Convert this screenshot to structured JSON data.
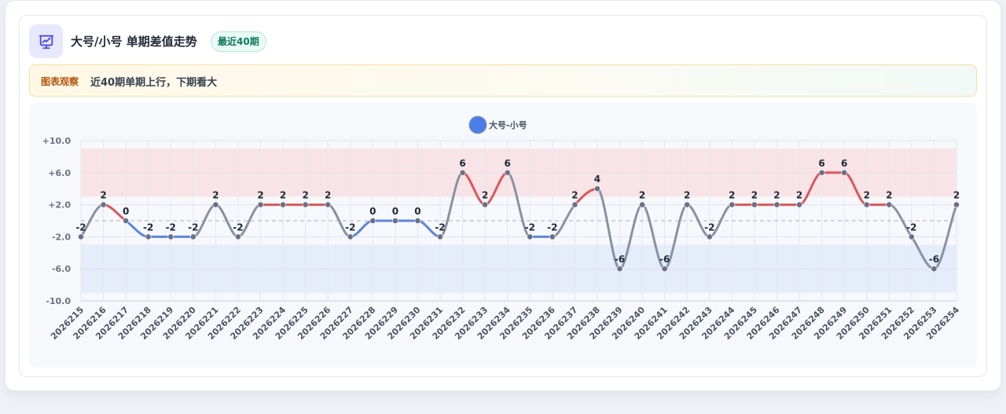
{
  "header": {
    "title": "大号/小号 单期差值走势",
    "badge": "最近40期",
    "icon": "presentation-chart-icon",
    "accent": "#4f46e5"
  },
  "note": {
    "tag": "图表观察",
    "text": "近40期单期上行，下期看大"
  },
  "chart_data": {
    "type": "line",
    "title": "",
    "xlabel": "",
    "ylabel": "",
    "series": [
      {
        "name": "大号-小号",
        "values": [
          -2,
          2,
          0,
          -2,
          -2,
          -2,
          2,
          -2,
          2,
          2,
          2,
          2,
          -2,
          0,
          0,
          0,
          -2,
          6,
          2,
          6,
          -2,
          -2,
          2,
          4,
          -6,
          2,
          -6,
          2,
          -2,
          2,
          2,
          2,
          2,
          6,
          6,
          2,
          2,
          -2,
          -6,
          2
        ]
      }
    ],
    "categories": [
      "2026215",
      "2026216",
      "2026217",
      "2026218",
      "2026219",
      "2026220",
      "2026221",
      "2026222",
      "2026223",
      "2026224",
      "2026225",
      "2026226",
      "2026227",
      "2026228",
      "2026229",
      "2026230",
      "2026231",
      "2026232",
      "2026233",
      "2026234",
      "2026235",
      "2026236",
      "2026237",
      "2026238",
      "2026239",
      "2026240",
      "2026241",
      "2026242",
      "2026243",
      "2026244",
      "2026245",
      "2026246",
      "2026247",
      "2026248",
      "2026249",
      "2026250",
      "2026251",
      "2026252",
      "2026253",
      "2026254"
    ],
    "data_labels": [
      "-2",
      "2",
      "0",
      "-2",
      "-2",
      "-2",
      "2",
      "-2",
      "2",
      "2",
      "2",
      "2",
      "-2",
      "0",
      "0",
      "0",
      "-2",
      "6",
      "2",
      "6",
      "-2",
      "-2",
      "2",
      "4",
      "-6",
      "2",
      "-6",
      "2",
      "-2",
      "2",
      "2",
      "2",
      "2",
      "6",
      "6",
      "2",
      "2",
      "-2",
      "-6",
      "2"
    ],
    "y_ticks": [
      10,
      6,
      2,
      -2,
      -6,
      -10
    ],
    "y_tick_labels": [
      "+10.0",
      "+6.0",
      "+2.0",
      "-2.0",
      "-6.0",
      "-10.0"
    ],
    "ylim": [
      -10,
      10
    ],
    "upper_band": [
      3,
      9
    ],
    "lower_band": [
      -9,
      -3
    ],
    "reference_line": 0,
    "legend_position": "top-center",
    "grid": true,
    "colors": {
      "legend": "#4a7ee6",
      "up": "#d9585b",
      "down": "#5b86e0",
      "neutral": "#8792a2",
      "point": "#6b6f86",
      "upper_band": "#f8e3e6",
      "lower_band": "#e5ecfa"
    }
  }
}
